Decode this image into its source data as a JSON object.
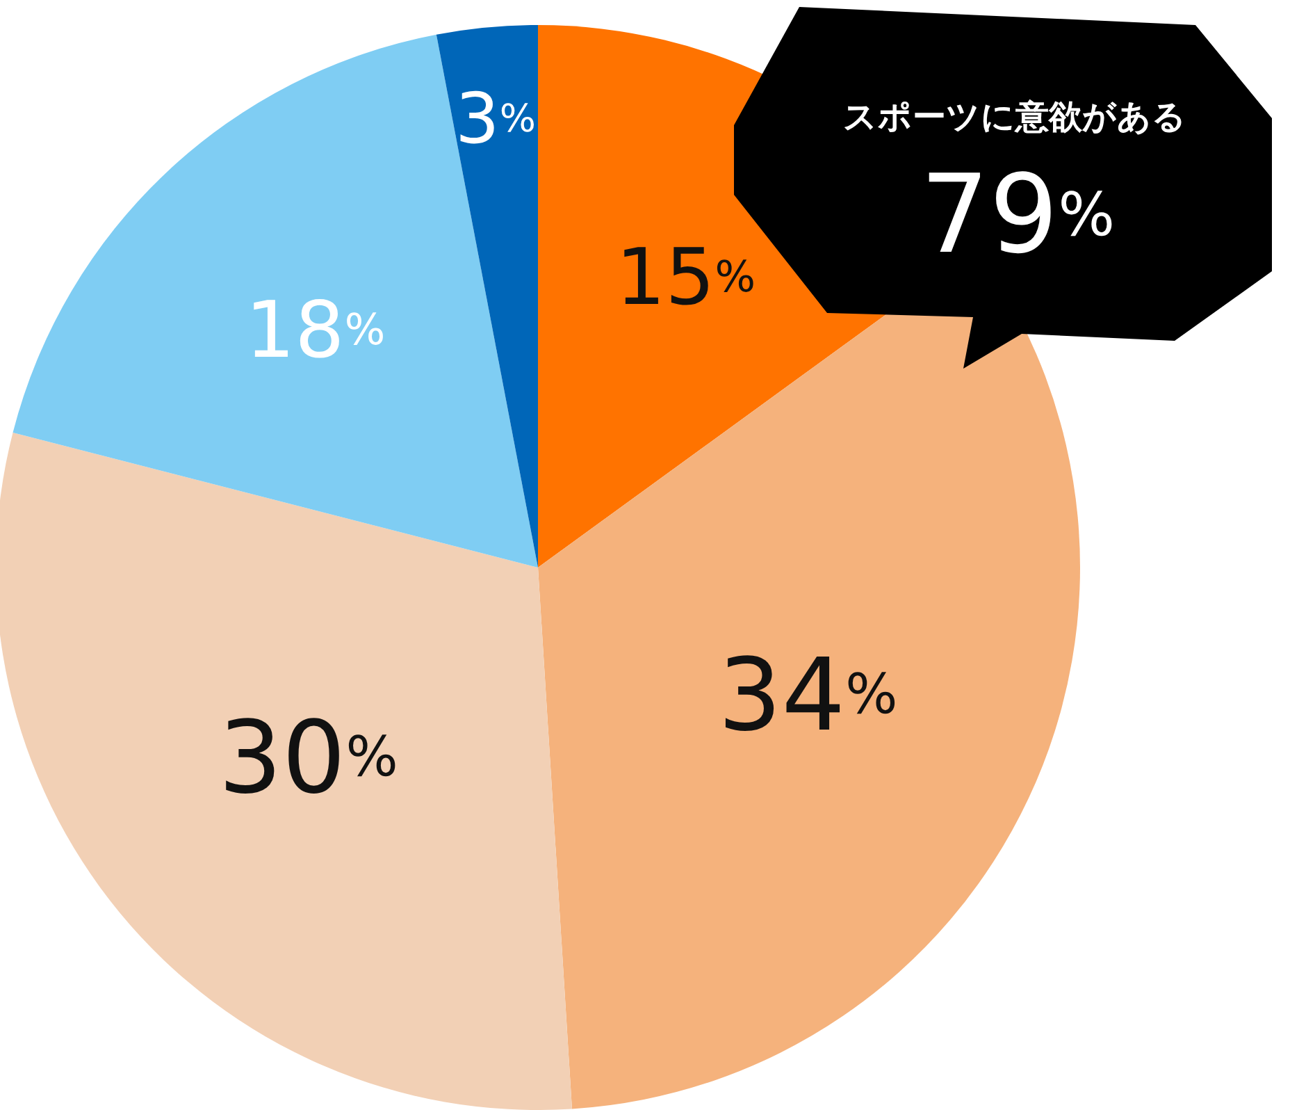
{
  "chart_data": {
    "type": "pie",
    "categories": [
      null,
      null,
      null,
      null,
      null
    ],
    "values": [
      15,
      34,
      30,
      18,
      3
    ],
    "colors": [
      "#ff7300",
      "#f5b27c",
      "#f2d0b5",
      "#7fcdf3",
      "#0066b8"
    ],
    "value_labels": [
      "15%",
      "34%",
      "30%",
      "18%",
      "3%"
    ],
    "annotations": [
      "スポーツに意欲がある",
      "79%"
    ]
  }
}
